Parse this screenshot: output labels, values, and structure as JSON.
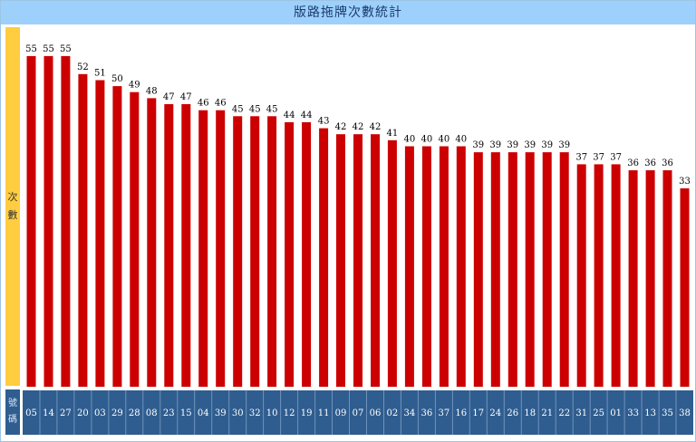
{
  "header": {
    "title": "版路拖牌次數統計"
  },
  "axis": {
    "ylabel_chars": [
      "次",
      "數"
    ],
    "xlabel_chars": [
      "號",
      "碼"
    ]
  },
  "colors": {
    "title_bg": "#9dd0fb",
    "ylabel_bg": "#ffcd3f",
    "bar": "#cc0000",
    "category_bg": "#2f5d8f"
  },
  "chart_data": {
    "type": "bar",
    "title": "版路拖牌次數統計",
    "xlabel": "號碼",
    "ylabel": "次數",
    "categories": [
      "05",
      "14",
      "27",
      "20",
      "03",
      "29",
      "28",
      "08",
      "23",
      "15",
      "04",
      "39",
      "30",
      "32",
      "10",
      "12",
      "19",
      "11",
      "09",
      "07",
      "06",
      "02",
      "34",
      "36",
      "37",
      "16",
      "17",
      "24",
      "26",
      "18",
      "21",
      "22",
      "31",
      "25",
      "01",
      "33",
      "13",
      "35",
      "38"
    ],
    "values": [
      55,
      55,
      55,
      52,
      51,
      50,
      49,
      48,
      47,
      47,
      46,
      46,
      45,
      45,
      45,
      44,
      44,
      43,
      42,
      42,
      42,
      41,
      40,
      40,
      40,
      40,
      39,
      39,
      39,
      39,
      39,
      39,
      37,
      37,
      37,
      36,
      36,
      36,
      33
    ],
    "ylim": [
      0,
      58
    ],
    "grid": false,
    "legend": "none"
  }
}
